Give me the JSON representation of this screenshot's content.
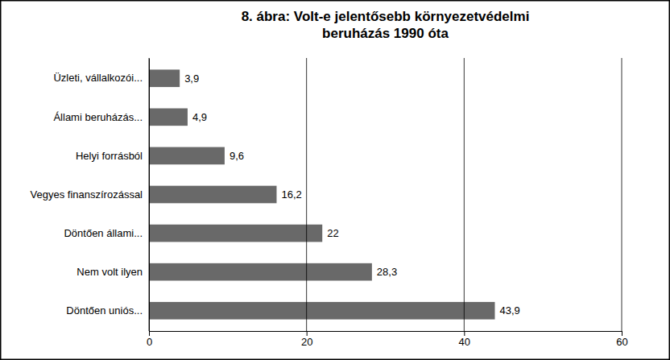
{
  "chart_data": {
    "type": "bar",
    "orientation": "horizontal",
    "title": "8. ábra: Volt-e jelentősebb környezetvédelmi\nberuházás 1990 óta",
    "categories": [
      "Döntően uniós...",
      "Nem volt ilyen",
      "Döntően állami...",
      "Vegyes finanszírozással",
      "Helyi forrásból",
      "Állami beruházás...",
      "Üzleti, vállalkozói..."
    ],
    "values": [
      43.9,
      28.3,
      22.0,
      16.2,
      9.6,
      4.9,
      3.9
    ],
    "value_labels": [
      "43,9",
      "28,3",
      "22",
      "16,2",
      "9,6",
      "4,9",
      "3,9"
    ],
    "data_labels": true,
    "color": "#696969",
    "xlim": [
      0,
      60
    ],
    "xticks": [
      0,
      20,
      40,
      60
    ],
    "grid": true
  }
}
